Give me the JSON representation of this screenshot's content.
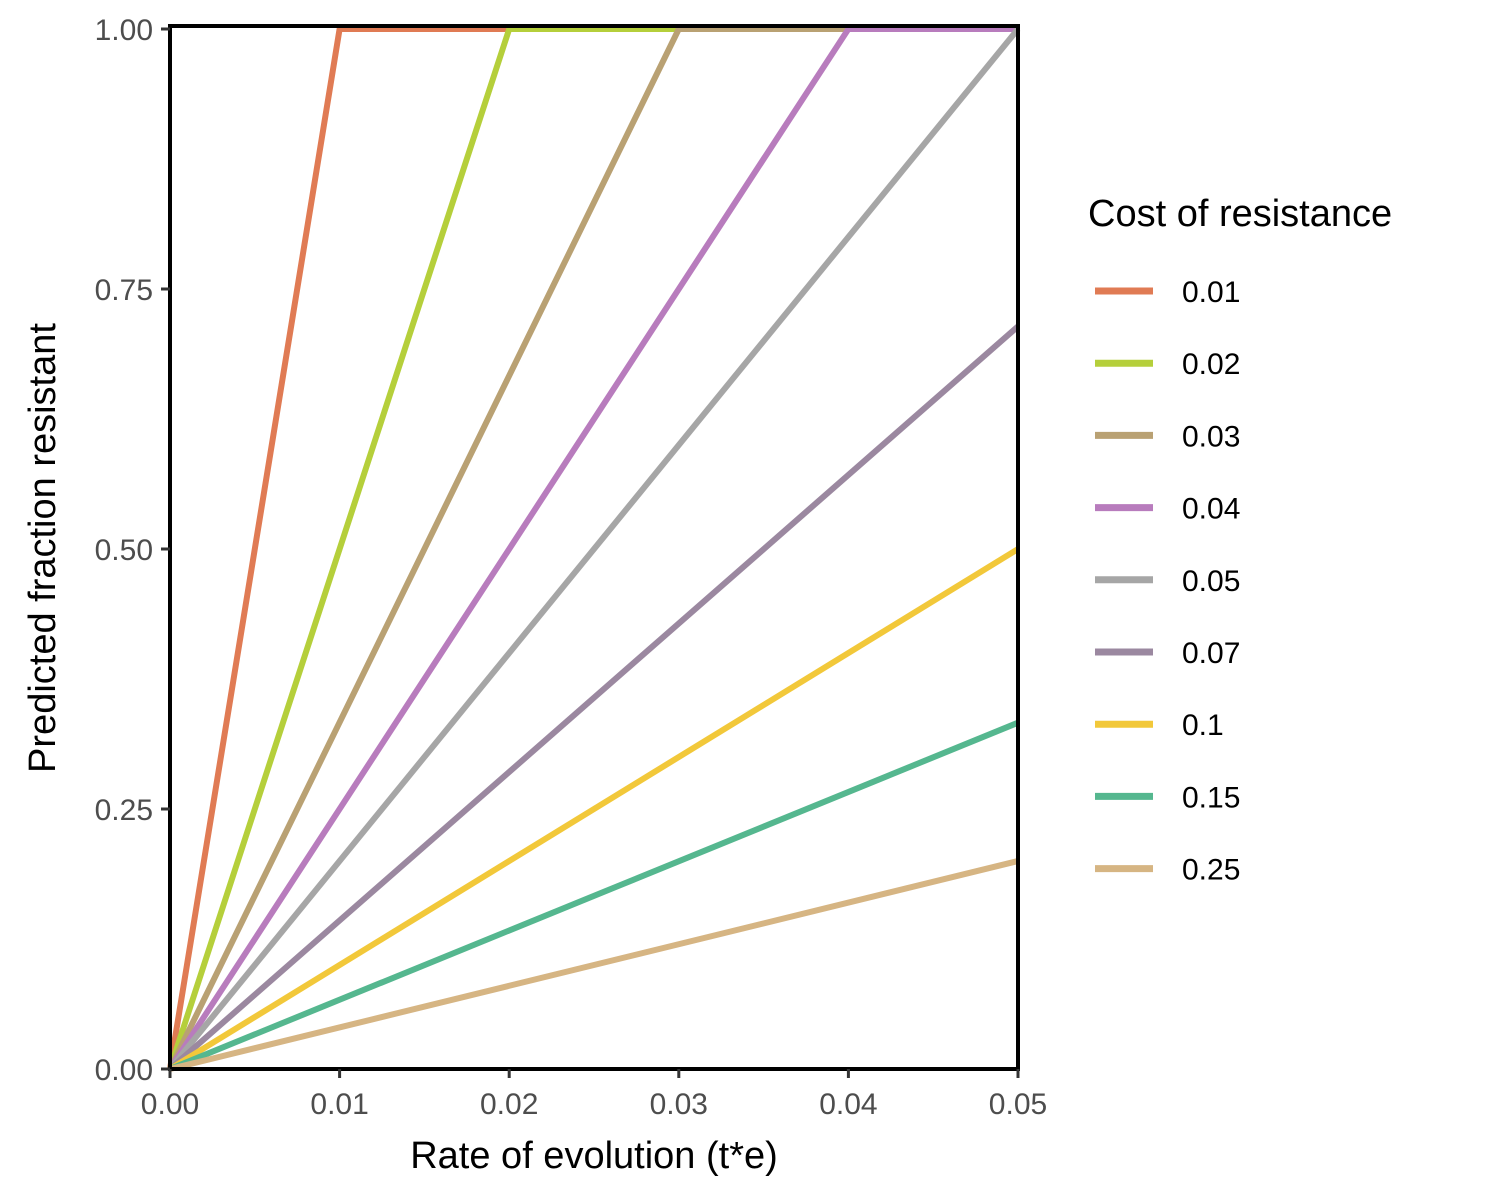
{
  "chart_data": {
    "type": "line",
    "xlabel": "Rate of evolution (t*e)",
    "ylabel": "Predicted fraction resistant",
    "xlim": [
      0,
      0.05
    ],
    "ylim": [
      0,
      1
    ],
    "x_ticks": [
      "0.00",
      "0.01",
      "0.02",
      "0.03",
      "0.04",
      "0.05"
    ],
    "y_ticks": [
      "0.00",
      "0.25",
      "0.50",
      "0.75",
      "1.00"
    ],
    "grid": false,
    "legend": {
      "title": "Cost of resistance",
      "placement": "right"
    },
    "series": [
      {
        "name": "0.01",
        "color": "#e07b54",
        "points": [
          [
            0,
            0
          ],
          [
            0.01,
            1
          ],
          [
            0.05,
            1
          ]
        ]
      },
      {
        "name": "0.02",
        "color": "#b5cf3b",
        "points": [
          [
            0,
            0
          ],
          [
            0.02,
            1
          ],
          [
            0.05,
            1
          ]
        ]
      },
      {
        "name": "0.03",
        "color": "#b9a173",
        "points": [
          [
            0,
            0
          ],
          [
            0.03,
            1
          ],
          [
            0.05,
            1
          ]
        ]
      },
      {
        "name": "0.04",
        "color": "#b87cbd",
        "points": [
          [
            0,
            0
          ],
          [
            0.04,
            1
          ],
          [
            0.05,
            1
          ]
        ]
      },
      {
        "name": "0.05",
        "color": "#a6a6a6",
        "points": [
          [
            0,
            0
          ],
          [
            0.05,
            1
          ]
        ]
      },
      {
        "name": "0.07",
        "color": "#9b88a0",
        "points": [
          [
            0,
            0
          ],
          [
            0.05,
            0.714
          ]
        ]
      },
      {
        "name": "0.1",
        "color": "#f2c83a",
        "points": [
          [
            0,
            0
          ],
          [
            0.05,
            0.5
          ]
        ]
      },
      {
        "name": "0.15",
        "color": "#55b78f",
        "points": [
          [
            0,
            0
          ],
          [
            0.05,
            0.333
          ]
        ]
      },
      {
        "name": "0.25",
        "color": "#d6b583",
        "points": [
          [
            0,
            0
          ],
          [
            0.05,
            0.2
          ]
        ]
      }
    ]
  }
}
